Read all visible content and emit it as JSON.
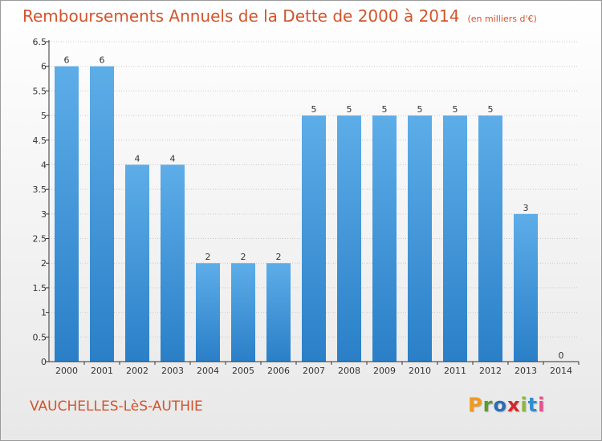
{
  "header": {
    "title": "Remboursements Annuels de la Dette de 2000 à 2014",
    "subtitle": "(en milliers d'€)"
  },
  "footer": {
    "commune": "VAUCHELLES-LèS-AUTHIE",
    "logo_text": "Proxiti"
  },
  "colors": {
    "bar_light": "#5dade8",
    "bar_dark": "#2a7fc7",
    "title": "#d2542b",
    "grid": "#cccccc",
    "axis": "#333333"
  },
  "chart_data": {
    "type": "bar",
    "categories": [
      "2000",
      "2001",
      "2002",
      "2003",
      "2004",
      "2005",
      "2006",
      "2007",
      "2008",
      "2009",
      "2010",
      "2011",
      "2012",
      "2013",
      "2014"
    ],
    "values": [
      6,
      6,
      4,
      4,
      2,
      2,
      2,
      5,
      5,
      5,
      5,
      5,
      5,
      3,
      0
    ],
    "data_labels": [
      "6",
      "6",
      "4",
      "4",
      "2",
      "2",
      "2",
      "5",
      "5",
      "5",
      "5",
      "5",
      "5",
      "3",
      "0"
    ],
    "title": "Remboursements Annuels de la Dette de 2000 à 2014",
    "subtitle": "(en milliers d'€)",
    "xlabel": "",
    "ylabel": "",
    "ylim": [
      0,
      6.5
    ],
    "yticks": [
      "0",
      "0.5",
      "1",
      "1.5",
      "2",
      "2.5",
      "3",
      "3.5",
      "4",
      "4.5",
      "5",
      "5.5",
      "6",
      "6.5"
    ],
    "grid": true,
    "legend": "none"
  }
}
